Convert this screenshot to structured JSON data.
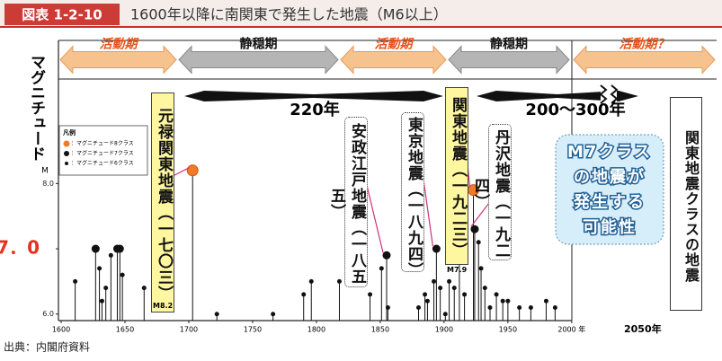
{
  "header": {
    "label": "図表 1-2-10",
    "title": "1600年以降に南関東で発生した地震（M6以上）"
  },
  "chart_data": {
    "type": "stem",
    "y_label": "マグニチュード",
    "y_unit": "M",
    "xlim": [
      1600,
      2110
    ],
    "xticks": [
      1600,
      1650,
      1700,
      1750,
      1800,
      1850,
      1900,
      1950,
      {
        "value": 2000,
        "label": "2000 年"
      },
      {
        "value": 2050,
        "label": "2050年"
      }
    ],
    "ylim": [
      5.9,
      9.6
    ],
    "yticks": [
      {
        "value": 6,
        "label": "6.0"
      },
      {
        "value": 7,
        "label": "7．0"
      },
      {
        "value": 8,
        "label": "8.0"
      }
    ],
    "legend_title": "凡例",
    "series": [
      {
        "name": "：マグニチュード8クラス",
        "color": "#f07a2a",
        "x": [
          1703,
          1923
        ],
        "values": [
          8.2,
          7.9
        ]
      },
      {
        "name": "：マグニチュード7クラス",
        "color": "#111111",
        "x": [
          1627,
          1644,
          1646,
          1855,
          1894,
          1924
        ],
        "values": [
          7.0,
          7.0,
          7.0,
          6.9,
          7.0,
          7.3
        ]
      },
      {
        "name": "：マグニチュード6クラス",
        "color": "#111111",
        "x": [
          1611,
          1630,
          1632,
          1635,
          1639,
          1648,
          1665,
          1722,
          1766,
          1790,
          1796,
          1818,
          1842,
          1851,
          1856,
          1880,
          1885,
          1887,
          1892,
          1897,
          1901,
          1904,
          1908,
          1912,
          1916,
          1927,
          1929,
          1932,
          1936,
          1941,
          1946,
          1950,
          1959,
          1968,
          1980,
          1987
        ],
        "values": [
          6.5,
          6.7,
          6.2,
          6.4,
          6.9,
          6.6,
          6.4,
          6.0,
          6.0,
          6.3,
          6.5,
          6.5,
          6.3,
          6.7,
          6.1,
          6.1,
          6.3,
          6.2,
          6.5,
          6.4,
          6.0,
          6.5,
          6.4,
          6.8,
          6.3,
          7.1,
          6.7,
          6.4,
          6.1,
          6.3,
          6.2,
          6.2,
          6.1,
          6.1,
          6.2,
          6.1
        ]
      }
    ],
    "periods": [
      "活動期",
      "静穏期",
      "活動期",
      "静穏期",
      "活動期？"
    ],
    "intervals": [
      "220年",
      "200〜300年"
    ],
    "annotations": [
      {
        "text": "元禄関東地震（一七〇三）",
        "magnitude_label": "M8.2"
      },
      {
        "text": "安政江戸地震（一八五五）"
      },
      {
        "text": "東京地震（一八九四）"
      },
      {
        "text": "関東地震（一九二三）",
        "magnitude_label": "M7.9"
      },
      {
        "text": "丹沢地震（一九二四）"
      }
    ],
    "forecast_lines": [
      "M7クラス",
      "の地震が",
      "発生する",
      "可能性"
    ],
    "future_label": "関東地震クラスの地震"
  },
  "source": "出典：内閣府資料"
}
